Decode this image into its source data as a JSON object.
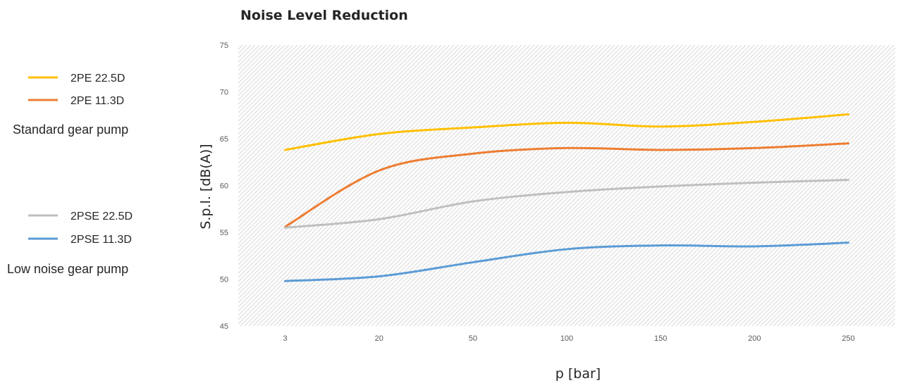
{
  "chart_data": {
    "type": "line",
    "title": "Noise Level Reduction",
    "xlabel": "p [bar]",
    "ylabel": "S.p.l. [dB(A)]",
    "categories": [
      "3",
      "20",
      "50",
      "100",
      "150",
      "200",
      "250"
    ],
    "ylim": [
      45,
      75
    ],
    "yticks": [
      45,
      50,
      55,
      60,
      65,
      70,
      75
    ],
    "grid": false,
    "plot_background": "diagonal hatch",
    "smooth": true,
    "series": [
      {
        "name": "2PE 22.5D",
        "color": "#FFC000",
        "values": [
          63.8,
          65.5,
          66.2,
          66.7,
          66.3,
          66.8,
          67.6
        ]
      },
      {
        "name": "2PE 11.3D",
        "color": "#ED7D31",
        "values": [
          55.6,
          61.6,
          63.4,
          64.0,
          63.8,
          64.0,
          64.5
        ]
      },
      {
        "name": "2PSE 22.5D",
        "color": "#BFBFBF",
        "values": [
          55.5,
          56.4,
          58.3,
          59.3,
          59.9,
          60.3,
          60.6
        ]
      },
      {
        "name": "2PSE 11.3D",
        "color": "#5B9BD5",
        "values": [
          49.8,
          50.3,
          51.8,
          53.2,
          53.6,
          53.5,
          53.9
        ]
      }
    ],
    "legend_groups": [
      {
        "label": "Standard gear pump",
        "series": [
          0,
          1
        ]
      },
      {
        "label": "Low noise gear pump",
        "series": [
          2,
          3
        ]
      }
    ],
    "legend_position": "left"
  }
}
